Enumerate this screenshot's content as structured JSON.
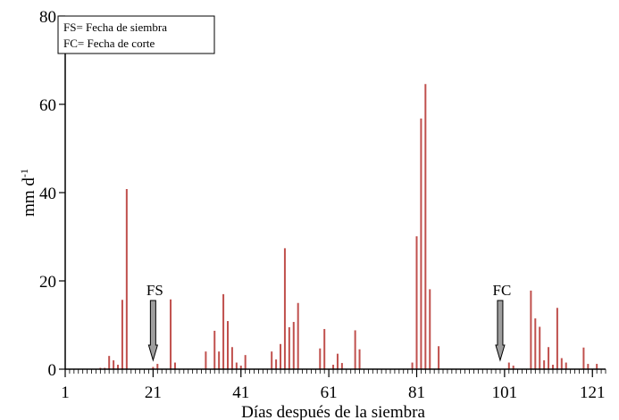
{
  "chart_data": {
    "type": "bar",
    "xlabel": "Días después de la siembra",
    "ylabel": "mm d",
    "ylabel_superscript": "-1",
    "xlim": [
      1,
      124
    ],
    "ylim": [
      0,
      80
    ],
    "x_ticks": [
      1,
      21,
      41,
      61,
      81,
      101,
      121
    ],
    "y_ticks": [
      0,
      20,
      40,
      60,
      80
    ],
    "grid": false,
    "bar_color": "#c0504d",
    "legend": {
      "placement": "top-left",
      "lines": [
        "FS= Fecha de siembra",
        "FC= Fecha de corte"
      ]
    },
    "annotations": [
      {
        "label": "FS",
        "x": 21,
        "icon": "down-arrow-icon"
      },
      {
        "label": "FC",
        "x": 100,
        "icon": "down-arrow-icon"
      }
    ],
    "series": [
      {
        "x": [
          9,
          10,
          11,
          12,
          13,
          14,
          15,
          21,
          22,
          25,
          26,
          33,
          35,
          36,
          37,
          38,
          39,
          40,
          41,
          42,
          48,
          49,
          50,
          51,
          52,
          53,
          54,
          59,
          60,
          62,
          63,
          64,
          67,
          68,
          80,
          81,
          82,
          83,
          84,
          86,
          102,
          103,
          107,
          108,
          109,
          110,
          111,
          112,
          113,
          114,
          115,
          119,
          120,
          122
        ],
        "values": [
          0.3,
          0.3,
          3.0,
          2.0,
          1.0,
          15.7,
          40.8,
          0.5,
          1.2,
          15.8,
          1.5,
          4.0,
          8.7,
          4.0,
          17.0,
          10.9,
          5.0,
          1.5,
          0.8,
          3.2,
          4.0,
          2.2,
          5.7,
          27.4,
          9.5,
          10.7,
          15.0,
          4.7,
          9.1,
          1.0,
          3.5,
          1.4,
          8.8,
          4.5,
          1.5,
          30.1,
          56.8,
          64.6,
          18.1,
          5.2,
          1.5,
          0.8,
          17.8,
          11.5,
          9.6,
          2.0,
          5.0,
          1.0,
          13.9,
          2.5,
          1.5,
          4.9,
          1.2,
          1.2
        ]
      }
    ]
  }
}
